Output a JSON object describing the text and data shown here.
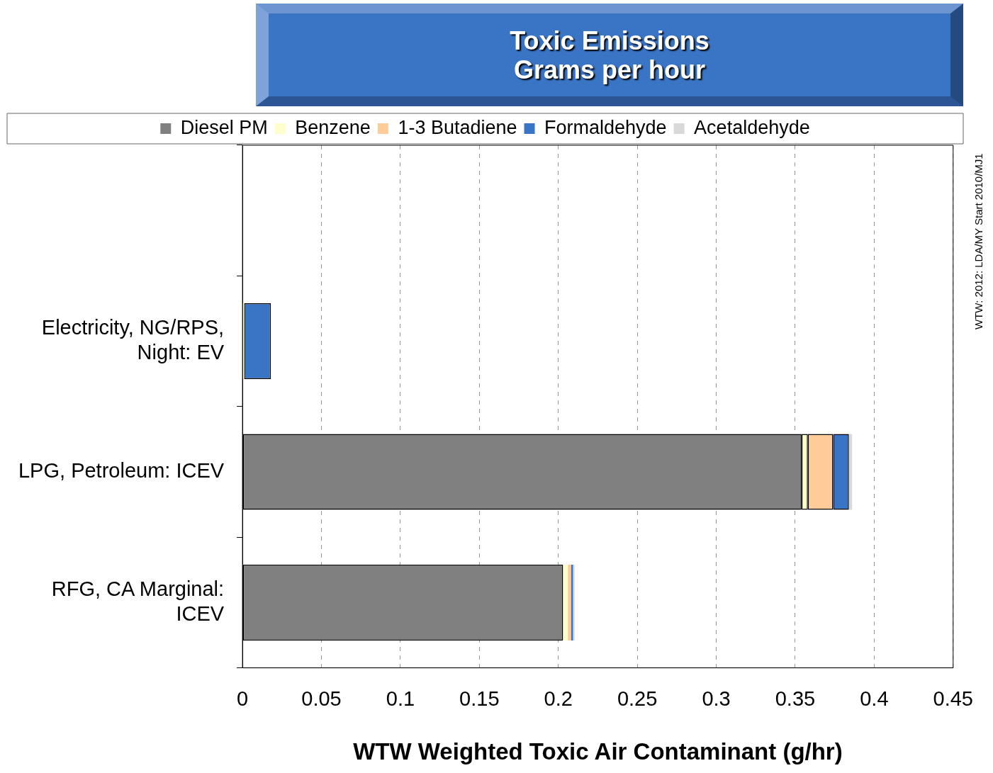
{
  "chart_data": {
    "type": "bar",
    "orientation": "horizontal",
    "stacked": true,
    "title": "Toxic Emissions",
    "subtitle": "Grams per hour",
    "xlabel": "WTW Weighted Toxic Air Contaminant (g/hr)",
    "categories": [
      null,
      "Electricity, NG/RPS, Night: EV",
      "LPG, Petroleum: ICEV",
      "RFG, CA Marginal: ICEV"
    ],
    "series": [
      {
        "name": "Diesel PM",
        "color": "#808080",
        "values": [
          null,
          0,
          0.354,
          0.203
        ]
      },
      {
        "name": "Benzene",
        "color": "#ffffcc",
        "values": [
          null,
          0.001,
          0.004,
          0.003
        ]
      },
      {
        "name": "1-3 Butadiene",
        "color": "#ffcc99",
        "values": [
          null,
          0,
          0.016,
          0.002
        ]
      },
      {
        "name": "Formaldehyde",
        "color": "#3a74c4",
        "values": [
          null,
          0.017,
          0.01,
          0.0013
        ]
      },
      {
        "name": "Acetaldehyde",
        "color": "#d9d9d9",
        "values": [
          null,
          0,
          0.002,
          0.001
        ]
      }
    ],
    "xlim": [
      0,
      0.45
    ],
    "xticks": [
      0,
      0.05,
      0.1,
      0.15,
      0.2,
      0.25,
      0.3,
      0.35,
      0.4,
      0.45
    ],
    "grid": "x",
    "legend": "top",
    "annotations": [
      "WTW: 2012: LDA/MY Start 2010/MJ1"
    ]
  }
}
